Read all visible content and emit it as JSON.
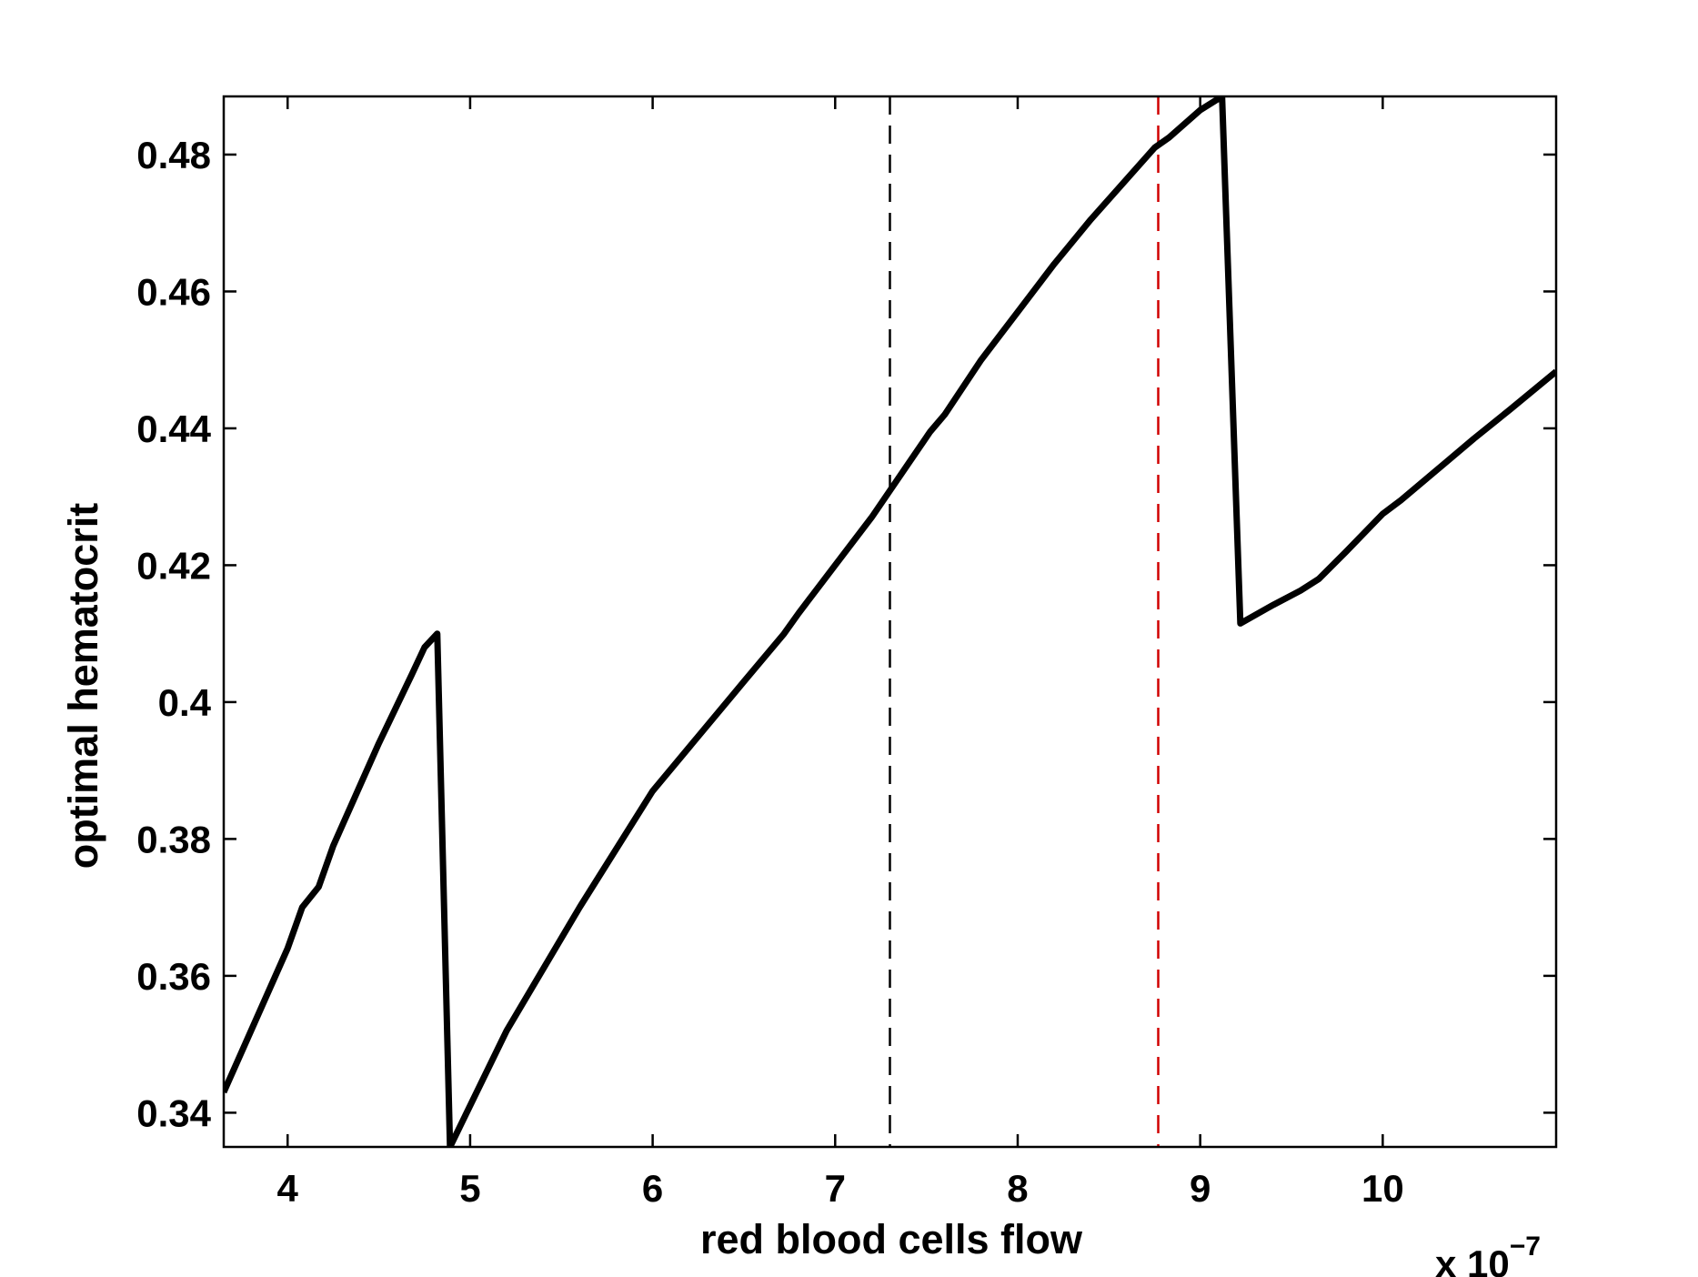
{
  "chart_data": {
    "type": "line",
    "title": "",
    "xlabel": "red blood cells flow",
    "ylabel": "optimal hematocrit",
    "x_multiplier_label": "x 10",
    "x_multiplier_exponent": "−7",
    "xlim": [
      3.65,
      10.95
    ],
    "ylim": [
      0.335,
      0.4885
    ],
    "xticks": [
      4,
      5,
      6,
      7,
      8,
      9,
      10
    ],
    "xtick_labels": [
      "4",
      "5",
      "6",
      "7",
      "8",
      "9",
      "10"
    ],
    "yticks": [
      0.34,
      0.36,
      0.38,
      0.4,
      0.42,
      0.44,
      0.46,
      0.48
    ],
    "ytick_labels": [
      "0.34",
      "0.36",
      "0.38",
      "0.4",
      "0.42",
      "0.44",
      "0.46",
      "0.48"
    ],
    "grid": false,
    "series": [
      {
        "color": "#000000",
        "x": [
          3.65,
          3.8,
          4.0,
          4.08,
          4.17,
          4.25,
          4.4,
          4.5,
          4.68,
          4.75,
          4.82,
          4.89,
          5.2,
          5.6,
          6.0,
          6.5,
          6.72,
          6.8,
          7.0,
          7.2,
          7.52,
          7.6,
          7.8,
          8.0,
          8.2,
          8.4,
          8.6,
          8.75,
          8.83,
          9.0,
          9.12,
          9.22,
          9.4,
          9.55,
          9.65,
          9.8,
          10.0,
          10.1,
          10.3,
          10.5,
          10.7,
          10.95
        ],
        "y": [
          0.343,
          0.352,
          0.364,
          0.37,
          0.373,
          0.379,
          0.388,
          0.394,
          0.404,
          0.408,
          0.41,
          0.335,
          0.352,
          0.37,
          0.387,
          0.403,
          0.41,
          0.413,
          0.42,
          0.427,
          0.4395,
          0.442,
          0.45,
          0.457,
          0.464,
          0.4705,
          0.4765,
          0.481,
          0.4825,
          0.4865,
          0.4885,
          0.4115,
          0.4142,
          0.4163,
          0.418,
          0.422,
          0.4275,
          0.4295,
          0.434,
          0.4385,
          0.4428,
          0.4483
        ]
      }
    ],
    "reference_lines": [
      {
        "axis": "x",
        "value": 7.3,
        "color": "#000000",
        "style": "dashed"
      },
      {
        "axis": "x",
        "value": 8.77,
        "color": "#d00000",
        "style": "dashed"
      }
    ]
  }
}
